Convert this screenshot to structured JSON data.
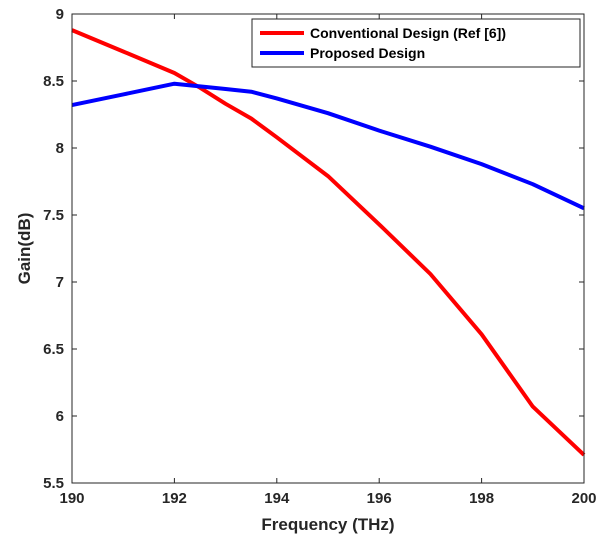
{
  "chart_data": {
    "type": "line",
    "title": "",
    "xlabel": "Frequency (THz)",
    "ylabel": "Gain(dB)",
    "xlim": [
      190,
      200
    ],
    "ylim": [
      5.5,
      9
    ],
    "xticks": [
      190,
      192,
      194,
      196,
      198,
      200
    ],
    "yticks": [
      5.5,
      6,
      6.5,
      7,
      7.5,
      8,
      8.5,
      9
    ],
    "grid": false,
    "legend_position": "top-right",
    "series": [
      {
        "name": "Conventional Design (Ref [6])",
        "color": "#ff0000",
        "x": [
          190,
          191,
          192,
          192.5,
          193,
          193.5,
          194,
          195,
          196,
          197,
          198,
          199,
          200
        ],
        "y": [
          8.88,
          8.72,
          8.56,
          8.45,
          8.33,
          8.22,
          8.08,
          7.79,
          7.43,
          7.06,
          6.61,
          6.07,
          5.71
        ]
      },
      {
        "name": "Proposed Design",
        "color": "#0000ff",
        "x": [
          190,
          191,
          192,
          193,
          193.5,
          194,
          195,
          196,
          197,
          198,
          199,
          200
        ],
        "y": [
          8.32,
          8.4,
          8.48,
          8.44,
          8.42,
          8.37,
          8.26,
          8.13,
          8.01,
          7.88,
          7.73,
          7.55
        ]
      }
    ]
  }
}
